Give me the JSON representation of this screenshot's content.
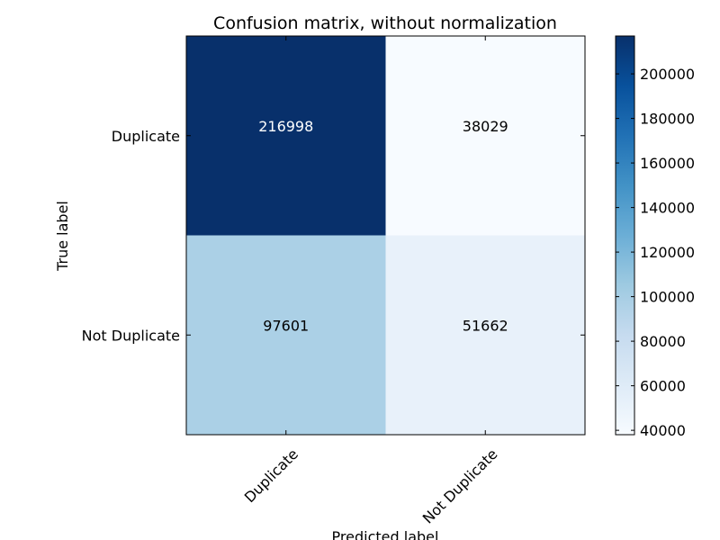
{
  "chart_data": {
    "type": "heatmap",
    "title": "Confusion matrix, without normalization",
    "xlabel": "Predicted label",
    "ylabel": "True label",
    "x_categories": [
      "Duplicate",
      "Not Duplicate"
    ],
    "y_categories": [
      "Duplicate",
      "Not Duplicate"
    ],
    "values": [
      [
        216998,
        38029
      ],
      [
        97601,
        51662
      ]
    ],
    "colorbar": {
      "min": 38029,
      "max": 216998,
      "ticks": [
        40000,
        60000,
        80000,
        100000,
        120000,
        140000,
        160000,
        180000,
        200000
      ],
      "colormap": "Blues"
    },
    "x_tick_rotation_deg": 45,
    "grid": false
  }
}
